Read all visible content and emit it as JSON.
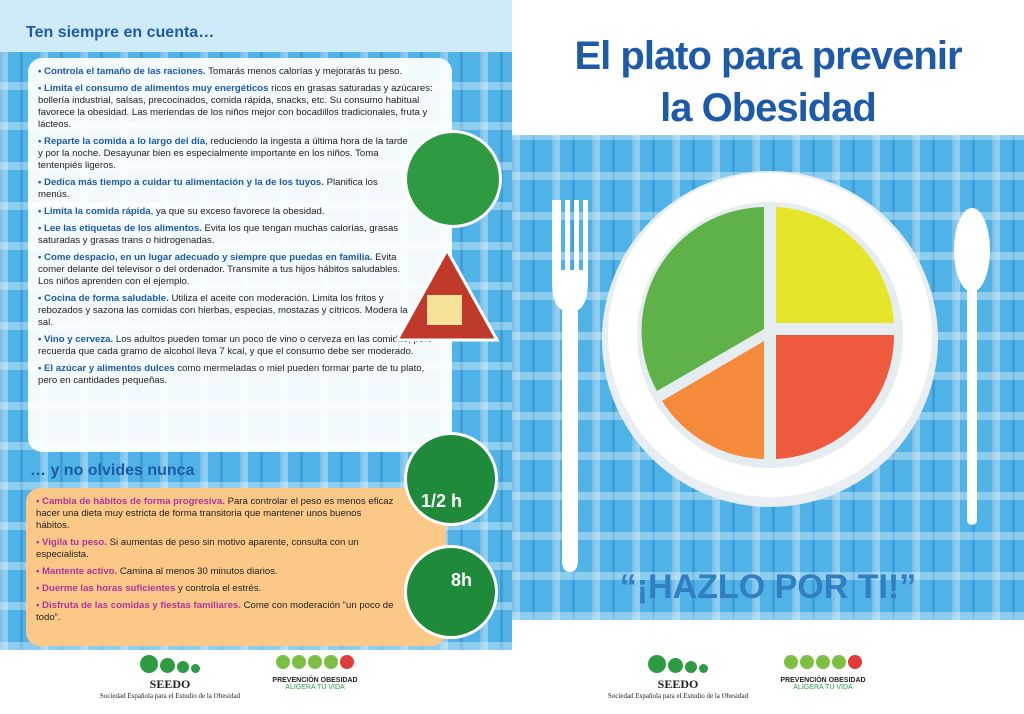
{
  "left": {
    "heading": "Ten siempre en cuenta…",
    "tips": [
      {
        "bold": "Controla el tamaño de las raciones.",
        "text": " Tomarás menos calorías y mejorarás tu peso."
      },
      {
        "bold": "Limita el consumo de alimentos muy energéticos",
        "text": " ricos en grasas saturadas y azúcares: bollería industrial, salsas, precocinados, comida rápida, snacks, etc. Su consumo habitual favorece la obesidad. Las meriendas de los niños mejor con bocadillos tradicionales, fruta y lácteos."
      },
      {
        "bold": "Reparte la comida a lo largo del día",
        "text": ", reduciendo la ingesta a última hora de la tarde y por la noche. Desayunar bien es especialmente importante en los niños. Toma tentenpiés ligeros."
      },
      {
        "bold": "Dedica más tiempo a cuidar tu alimentación y la de los tuyos.",
        "text": " Planifica los menús."
      },
      {
        "bold": "Limita la comida rápida",
        "text": ", ya que su exceso favorece la obesidad."
      },
      {
        "bold": "Lee las etiquetas de los alimentos.",
        "text": " Evita los que tengan muchas calorías, grasas saturadas y grasas trans o hidrogenadas."
      },
      {
        "bold": "Come despacio, en un lugar adecuado y siempre que puedas en familia.",
        "text": " Evita comer delante del televisor o del ordenador. Transmite a tus hijos hábitos saludables. Los niños aprenden con el ejemplo."
      },
      {
        "bold": "Cocina de forma saludable.",
        "text": " Utiliza el aceite con moderación. Limita los fritos y rebozados y sazona las comidas con hierbas, especias, mostazas y cítricos. Modera la sal."
      },
      {
        "bold": "Vino y cerveza.",
        "text": " Los adultos pueden tomar un poco de vino o cerveza en las comidas, pero recuerda que cada gramo de alcohol lleva 7 kcal, y que el consumo debe ser moderado."
      },
      {
        "bold": "El azúcar y alimentos dulces",
        "text": " como mermeladas o miel pueden formar parte de tu plato, pero en cantidades pequeñas."
      }
    ],
    "heading2": "… y no olvides nunca",
    "tips2": [
      {
        "bold": "Cambia de hábitos de forma progresiva.",
        "text": " Para controlar el peso es menos eficaz hacer una dieta muy estricta de forma transitoria que mantener unos buenos hábitos."
      },
      {
        "bold": "Vigila tu peso.",
        "text": " Si aumentas de peso sin motivo aparente, consulta con un especialista."
      },
      {
        "bold": "Mantente activo.",
        "text": " Camina al menos 30 minutos diarios."
      },
      {
        "bold": "Duerme las horas suficientes",
        "text": " y controla el estrés."
      },
      {
        "bold": "Disfruta de las comidas y fiestas familiares.",
        "text": " Come con moderación “un poco de todo”."
      }
    ],
    "icon_walk": "1/2 h",
    "icon_sleep": "8h"
  },
  "right": {
    "title_line1": "El plato para prevenir",
    "title_line2": "la Obesidad",
    "slogan": "“¡HAZLO POR TI!”"
  },
  "logos": {
    "seedo": "SEEDO",
    "seedo_full": "Sociedad Española para el Estudio de la Obesidad",
    "prevencion": "PREVENCIÓN OBESIDAD",
    "aligera": "ALIGERA TU VIDA"
  }
}
